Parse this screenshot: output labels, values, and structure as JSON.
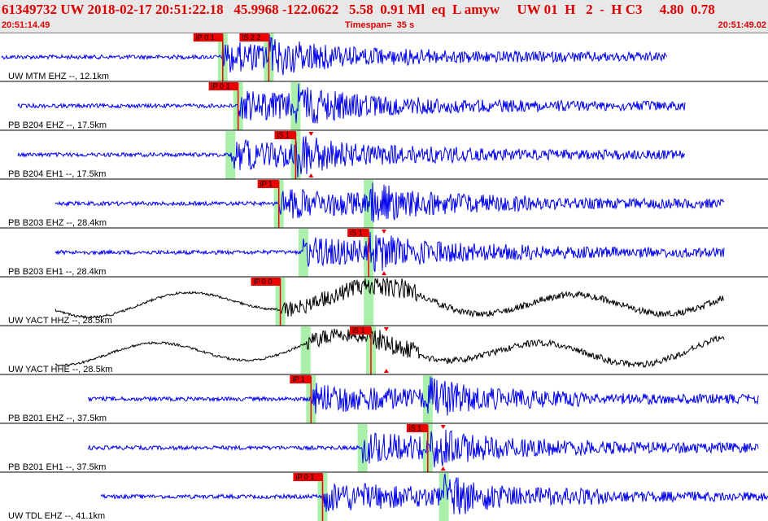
{
  "header": {
    "title": "61349732 UW 2018-02-17 20:51:22.18   45.9968 -122.0622   5.58  0.91 Ml  eq  L amyw     UW 01  H   2  -  H C3     4.80  0.78",
    "start_time": "20:51:14.49",
    "timespan": "Timespan=  35 s",
    "end_time": "20:51:49.02"
  },
  "colors": {
    "trace_blue": "#0000ee",
    "trace_black": "#000000",
    "pick_red": "#ee0000",
    "window_green": "#aaf0aa",
    "header_bg": "#e8e8e8",
    "title_red": "#dd0000"
  },
  "traces": [
    {
      "label": "UW MTM EHZ --, 12.1km",
      "color": "blue",
      "type": "local",
      "picks": [
        {
          "text": "iP 0 1",
          "pos": 0.29
        },
        {
          "text": "iS 2 2",
          "pos": 0.35
        }
      ]
    },
    {
      "label": "PB B204 EHZ --, 17.5km",
      "color": "blue",
      "type": "local",
      "picks": [
        {
          "text": "iP 0 1",
          "pos": 0.31
        }
      ]
    },
    {
      "label": "PB B204 EH1 --, 17.5km",
      "color": "blue",
      "type": "local",
      "picks": [
        {
          "text": "iS 1",
          "pos": 0.385
        }
      ]
    },
    {
      "label": "PB B203 EHZ --, 28.4km",
      "color": "blue",
      "type": "local",
      "picks": [
        {
          "text": "iP 1",
          "pos": 0.363
        }
      ]
    },
    {
      "label": "PB B203 EH1 --, 28.4km",
      "color": "blue",
      "type": "local",
      "picks": [
        {
          "text": "iS 1",
          "pos": 0.48
        }
      ]
    },
    {
      "label": "UW YACT HHZ --, 28.5km",
      "color": "black",
      "type": "broadband",
      "picks": [
        {
          "text": "iP 0 0",
          "pos": 0.365
        }
      ]
    },
    {
      "label": "UW YACT HHE --, 28.5km",
      "color": "black",
      "type": "broadband",
      "picks": [
        {
          "text": "iS 1",
          "pos": 0.483
        }
      ]
    },
    {
      "label": "PB B201 EHZ --, 37.5km",
      "color": "blue",
      "type": "local",
      "picks": [
        {
          "text": "iP 1",
          "pos": 0.405
        }
      ]
    },
    {
      "label": "PB B201 EH1 --, 37.5km",
      "color": "blue",
      "type": "local",
      "picks": [
        {
          "text": "iS 1",
          "pos": 0.557
        }
      ]
    },
    {
      "label": "UW TDL EHZ --, 41.1km",
      "color": "blue",
      "type": "local",
      "picks": [
        {
          "text": "iP 0 1",
          "pos": 0.42
        }
      ]
    }
  ]
}
